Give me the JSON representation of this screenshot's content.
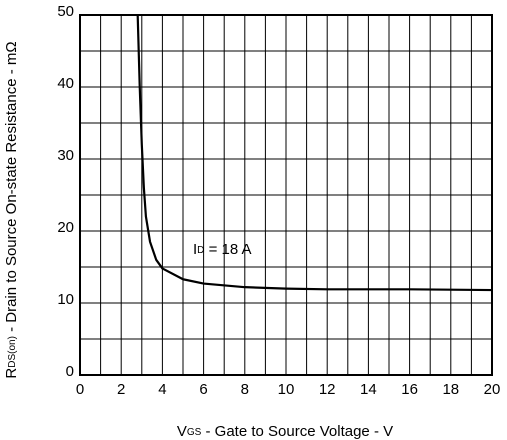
{
  "chart_data": {
    "type": "line",
    "x_label": [
      "V",
      "GS",
      " - Gate to Source Voltage - V"
    ],
    "y_label": [
      "R",
      "DS(on)",
      " - Drain to Source On-state Resistance - mΩ"
    ],
    "annotation": [
      "I",
      "D",
      " = 18 A"
    ],
    "series": [
      {
        "color": "#000000",
        "x": [
          2.8,
          2.9,
          3.0,
          3.1,
          3.2,
          3.4,
          3.7,
          4,
          5,
          6,
          8,
          10,
          12,
          16,
          20
        ],
        "values": [
          50,
          40,
          32,
          26,
          22,
          18.5,
          16,
          14.8,
          13.3,
          12.7,
          12.2,
          12.0,
          11.9,
          11.9,
          11.8
        ]
      }
    ],
    "xlim": [
      0,
      20
    ],
    "xticks": [
      0,
      2,
      4,
      6,
      8,
      10,
      12,
      14,
      16,
      18,
      20
    ],
    "x_minor_ticks": [
      1,
      3,
      5,
      7,
      9,
      11,
      13,
      15,
      17,
      19
    ],
    "ylim": [
      0,
      50
    ],
    "yticks": [
      0,
      10,
      20,
      30,
      40,
      50
    ],
    "y_minor_ticks": [
      5,
      15,
      25,
      35,
      45
    ],
    "grid": true
  }
}
